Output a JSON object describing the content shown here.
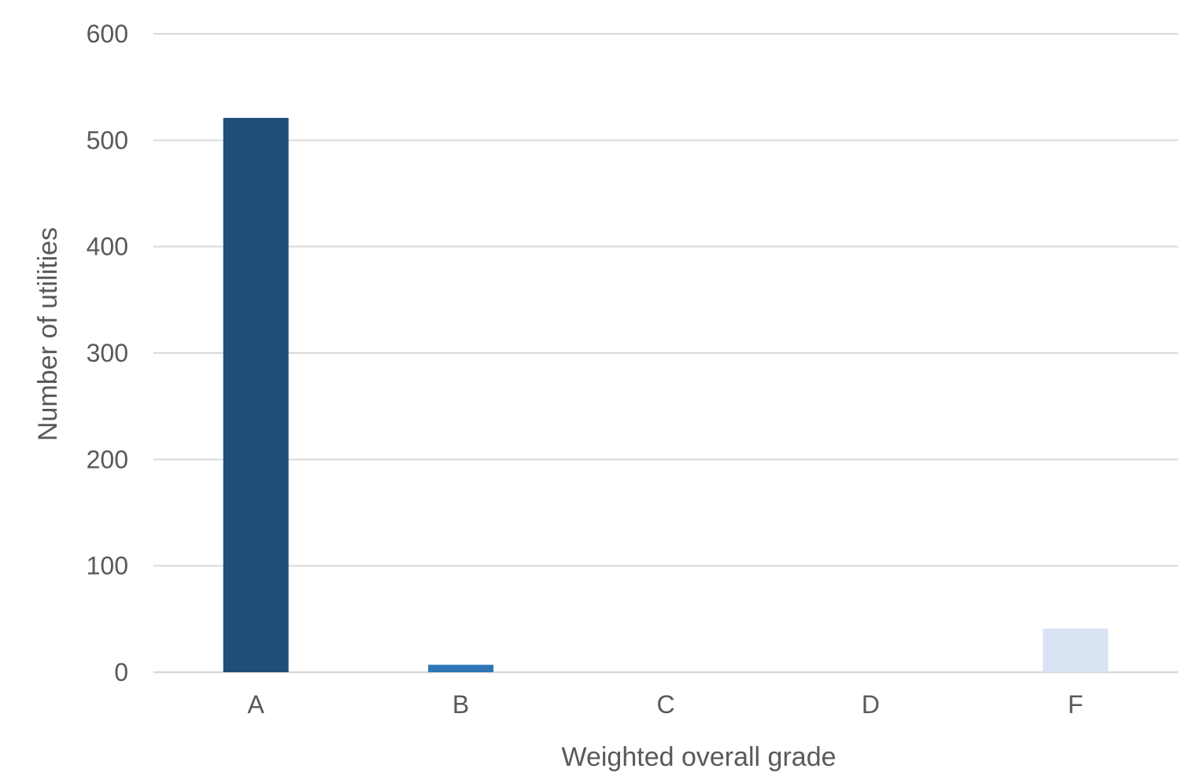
{
  "chart_data": {
    "type": "bar",
    "categories": [
      "A",
      "B",
      "C",
      "D",
      "F"
    ],
    "values": [
      521,
      7,
      0,
      0,
      41
    ],
    "bar_colors": [
      "#1f4e79",
      "#2e75b6",
      "#2e75b6",
      "#9dc3e6",
      "#dae3f3"
    ],
    "xlabel": "Weighted overall grade",
    "ylabel": "Number of utilities",
    "ylim": [
      0,
      600
    ],
    "yticks": [
      0,
      100,
      200,
      300,
      400,
      500,
      600
    ],
    "grid": true,
    "legend": "none"
  }
}
